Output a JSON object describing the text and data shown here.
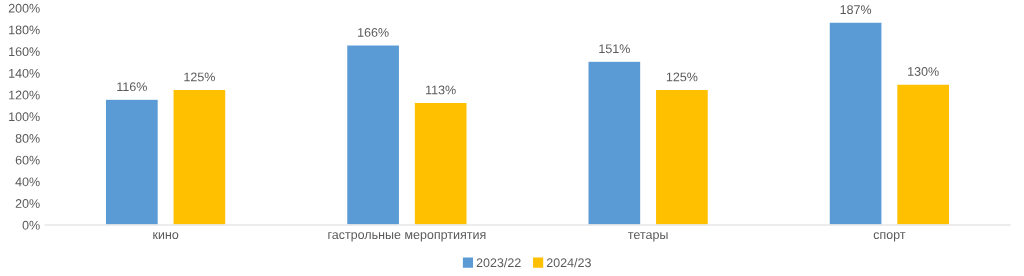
{
  "chart_data": {
    "type": "bar",
    "categories": [
      "кино",
      "гастрольные меропртиятия",
      "тетары",
      "спорт"
    ],
    "series": [
      {
        "name": "2023/22",
        "color": "#5b9bd5",
        "values": [
          116,
          166,
          151,
          187
        ],
        "value_labels": [
          "116%",
          "166%",
          "151%",
          "187%"
        ]
      },
      {
        "name": "2024/23",
        "color": "#ffc000",
        "values": [
          125,
          113,
          125,
          130
        ],
        "value_labels": [
          "125%",
          "113%",
          "125%",
          "130%"
        ]
      }
    ],
    "ylim": [
      0,
      200
    ],
    "yticks": [
      {
        "value": 0,
        "label": "0%"
      },
      {
        "value": 20,
        "label": "20%"
      },
      {
        "value": 40,
        "label": "40%"
      },
      {
        "value": 60,
        "label": "60%"
      },
      {
        "value": 80,
        "label": "80%"
      },
      {
        "value": 100,
        "label": "100%"
      },
      {
        "value": 120,
        "label": "120%"
      },
      {
        "value": 140,
        "label": "140%"
      },
      {
        "value": 160,
        "label": "160%"
      },
      {
        "value": 180,
        "label": "180%"
      },
      {
        "value": 200,
        "label": "200%"
      }
    ],
    "grid": false,
    "legend": "bottom"
  }
}
